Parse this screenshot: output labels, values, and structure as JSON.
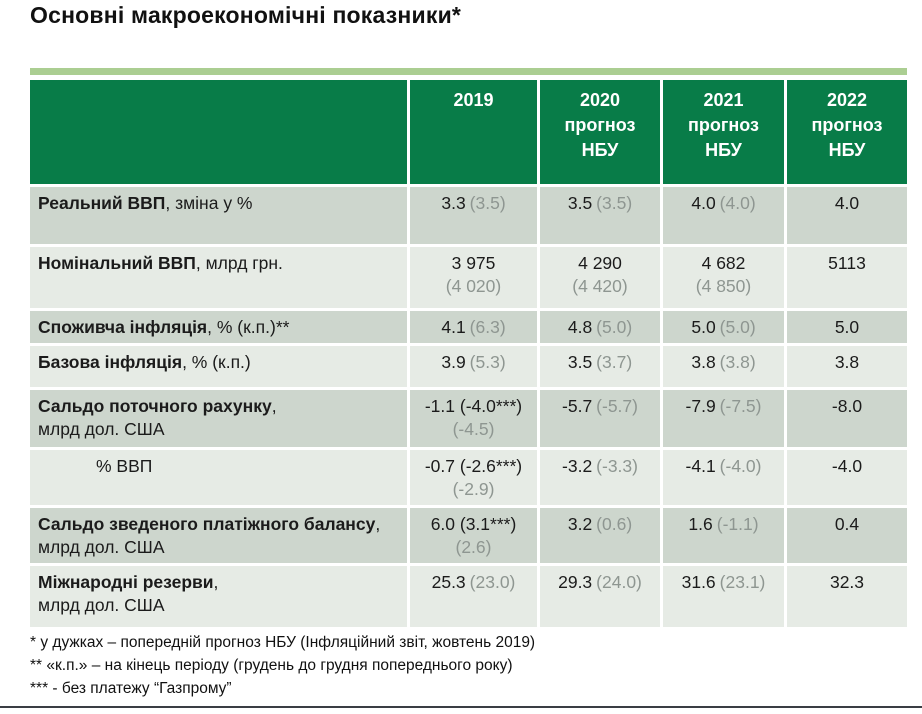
{
  "title": "Основні макроекономічні показники*",
  "colors": {
    "header_green": "#087c48",
    "accent_bar_green": "#abce92",
    "row_shade_dark": "#cdd6cd",
    "row_shade_light": "#e6ebe5",
    "muted_gray": "#8e9691",
    "bottom_rule": "#3a3e44"
  },
  "header": {
    "columns": [
      "2019",
      "2020\nпрогноз\nНБУ",
      "2021\nпрогноз\nНБУ",
      "2022\nпрогноз\nНБУ"
    ]
  },
  "rows": [
    {
      "label_bold": "Реальний ВВП",
      "label_rest": ", зміна у %",
      "indent": false,
      "cells": [
        {
          "v": "3.3",
          "p": "(3.5)",
          "sub": ""
        },
        {
          "v": "3.5",
          "p": "(3.5)",
          "sub": ""
        },
        {
          "v": "4.0",
          "p": "(4.0)",
          "sub": ""
        },
        {
          "v": "4.0",
          "p": "",
          "sub": ""
        }
      ]
    },
    {
      "label_bold": "Номінальний ВВП",
      "label_rest": ", млрд грн.",
      "indent": false,
      "cells": [
        {
          "v": "3 975",
          "p": "",
          "sub": "(4 020)"
        },
        {
          "v": "4 290",
          "p": "",
          "sub": "(4 420)"
        },
        {
          "v": "4 682",
          "p": "",
          "sub": "(4 850)"
        },
        {
          "v": "5113",
          "p": "",
          "sub": ""
        }
      ]
    },
    {
      "label_bold": "Споживча інфляція",
      "label_rest": ", % (к.п.)**",
      "indent": false,
      "cells": [
        {
          "v": "4.1",
          "p": "(6.3)",
          "sub": ""
        },
        {
          "v": "4.8",
          "p": "(5.0)",
          "sub": ""
        },
        {
          "v": "5.0",
          "p": "(5.0)",
          "sub": ""
        },
        {
          "v": "5.0",
          "p": "",
          "sub": ""
        }
      ]
    },
    {
      "label_bold": "Базова інфляція",
      "label_rest": ", % (к.п.)",
      "indent": false,
      "cells": [
        {
          "v": "3.9",
          "p": "(5.3)",
          "sub": ""
        },
        {
          "v": "3.5",
          "p": "(3.7)",
          "sub": ""
        },
        {
          "v": "3.8",
          "p": "(3.8)",
          "sub": ""
        },
        {
          "v": "3.8",
          "p": "",
          "sub": ""
        }
      ]
    },
    {
      "label_bold": "Сальдо поточного рахунку",
      "label_rest": ",\nмлрд дол. США",
      "indent": false,
      "cells": [
        {
          "v": "-1.1 (-4.0***)",
          "p": "",
          "sub": "(-4.5)"
        },
        {
          "v": "-5.7",
          "p": "(-5.7)",
          "sub": ""
        },
        {
          "v": "-7.9",
          "p": "(-7.5)",
          "sub": ""
        },
        {
          "v": "-8.0",
          "p": "",
          "sub": ""
        }
      ]
    },
    {
      "label_bold": "",
      "label_rest": "% ВВП",
      "indent": true,
      "cells": [
        {
          "v": "-0.7 (-2.6***)",
          "p": "",
          "sub": "(-2.9)"
        },
        {
          "v": "-3.2",
          "p": "(-3.3)",
          "sub": ""
        },
        {
          "v": "-4.1",
          "p": "(-4.0)",
          "sub": ""
        },
        {
          "v": "-4.0",
          "p": "",
          "sub": ""
        }
      ]
    },
    {
      "label_bold": "Сальдо зведеного платіжного балансу",
      "label_rest": ", млрд дол. США",
      "indent": false,
      "cells": [
        {
          "v": "6.0 (3.1***)",
          "p": "",
          "sub": "(2.6)"
        },
        {
          "v": "3.2",
          "p": "(0.6)",
          "sub": ""
        },
        {
          "v": "1.6",
          "p": "(-1.1)",
          "sub": ""
        },
        {
          "v": "0.4",
          "p": "",
          "sub": ""
        }
      ]
    },
    {
      "label_bold": "Міжнародні резерви",
      "label_rest": ",\nмлрд дол. США",
      "indent": false,
      "cells": [
        {
          "v": "25.3",
          "p": "(23.0)",
          "sub": ""
        },
        {
          "v": "29.3",
          "p": "(24.0)",
          "sub": ""
        },
        {
          "v": "31.6",
          "p": "(23.1)",
          "sub": ""
        },
        {
          "v": "32.3",
          "p": "",
          "sub": ""
        }
      ]
    }
  ],
  "footnotes": [
    "* у дужках – попередній прогноз НБУ (Інфляційний звіт, жовтень 2019)",
    "** «к.п.» – на кінець періоду (грудень до грудня попереднього року)",
    "*** - без платежу “Газпрому”"
  ]
}
